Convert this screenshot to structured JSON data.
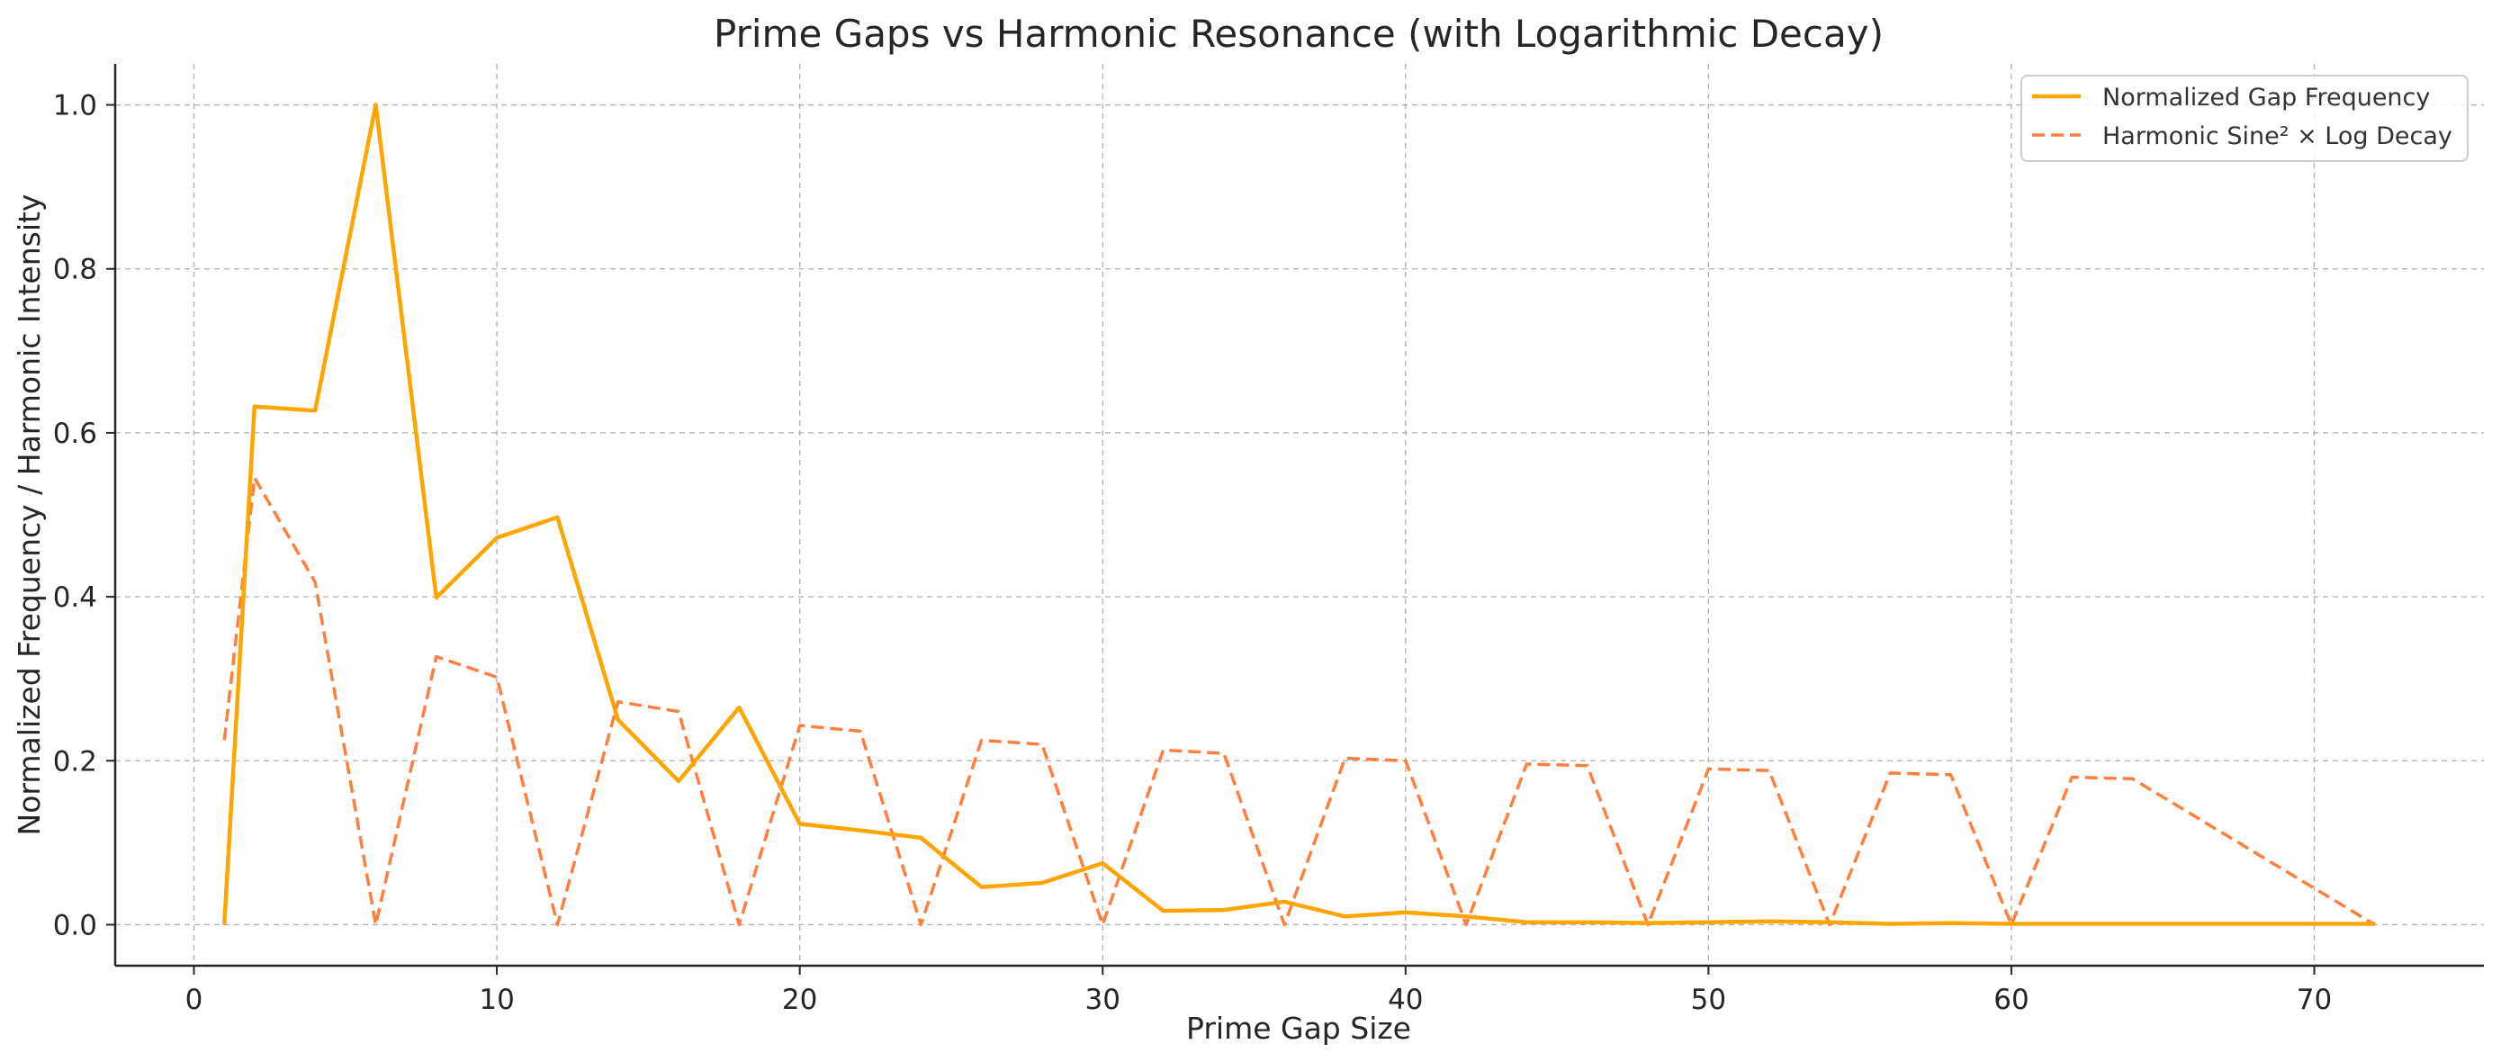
{
  "chart_data": {
    "type": "line",
    "title": "Prime Gaps vs Harmonic Resonance (with Logarithmic Decay)",
    "xlabel": "Prime Gap Size",
    "ylabel": "Normalized Frequency / Harmonic Intensity",
    "xlim": [
      -2.6,
      75.6
    ],
    "ylim": [
      -0.05,
      1.05
    ],
    "xticks": [
      0,
      10,
      20,
      30,
      40,
      50,
      60,
      70
    ],
    "xtick_labels": [
      "0",
      "10",
      "20",
      "30",
      "40",
      "50",
      "60",
      "70"
    ],
    "yticks": [
      0.0,
      0.2,
      0.4,
      0.6,
      0.8,
      1.0
    ],
    "ytick_labels": [
      "0.0",
      "0.2",
      "0.4",
      "0.6",
      "0.8",
      "1.0"
    ],
    "grid": true,
    "legend_position": "top-right",
    "series": [
      {
        "name": "Normalized Gap Frequency",
        "color": "#ffa500",
        "style": "solid",
        "x": [
          1,
          2,
          4,
          6,
          8,
          10,
          12,
          14,
          16,
          18,
          20,
          22,
          24,
          26,
          28,
          30,
          32,
          34,
          36,
          38,
          40,
          42,
          44,
          46,
          48,
          50,
          52,
          54,
          56,
          58,
          60,
          62,
          64,
          66,
          68,
          70,
          72
        ],
        "values": [
          0.0,
          0.632,
          0.627,
          1.0,
          0.399,
          0.472,
          0.497,
          0.25,
          0.175,
          0.265,
          0.123,
          0.115,
          0.106,
          0.046,
          0.051,
          0.075,
          0.017,
          0.018,
          0.028,
          0.01,
          0.015,
          0.01,
          0.003,
          0.003,
          0.002,
          0.003,
          0.004,
          0.003,
          0.001,
          0.002,
          0.001,
          0.001,
          0.001,
          0.001,
          0.001,
          0.001,
          0.001
        ]
      },
      {
        "name": "Harmonic Sine² × Log Decay",
        "color": "#ff7f3f",
        "style": "dashed",
        "x": [
          1,
          2,
          4,
          6,
          8,
          10,
          12,
          14,
          16,
          18,
          20,
          22,
          24,
          26,
          28,
          30,
          32,
          34,
          36,
          38,
          40,
          42,
          44,
          46,
          48,
          50,
          52,
          54,
          56,
          58,
          60,
          62,
          64,
          72
        ],
        "values": [
          0.225,
          0.545,
          0.418,
          0.0,
          0.327,
          0.302,
          0.0,
          0.272,
          0.26,
          0.0,
          0.243,
          0.236,
          0.0,
          0.225,
          0.22,
          0.0,
          0.213,
          0.209,
          0.0,
          0.203,
          0.2,
          0.0,
          0.196,
          0.194,
          0.0,
          0.19,
          0.188,
          0.0,
          0.185,
          0.183,
          0.0,
          0.18,
          0.178,
          0.0
        ]
      }
    ]
  }
}
